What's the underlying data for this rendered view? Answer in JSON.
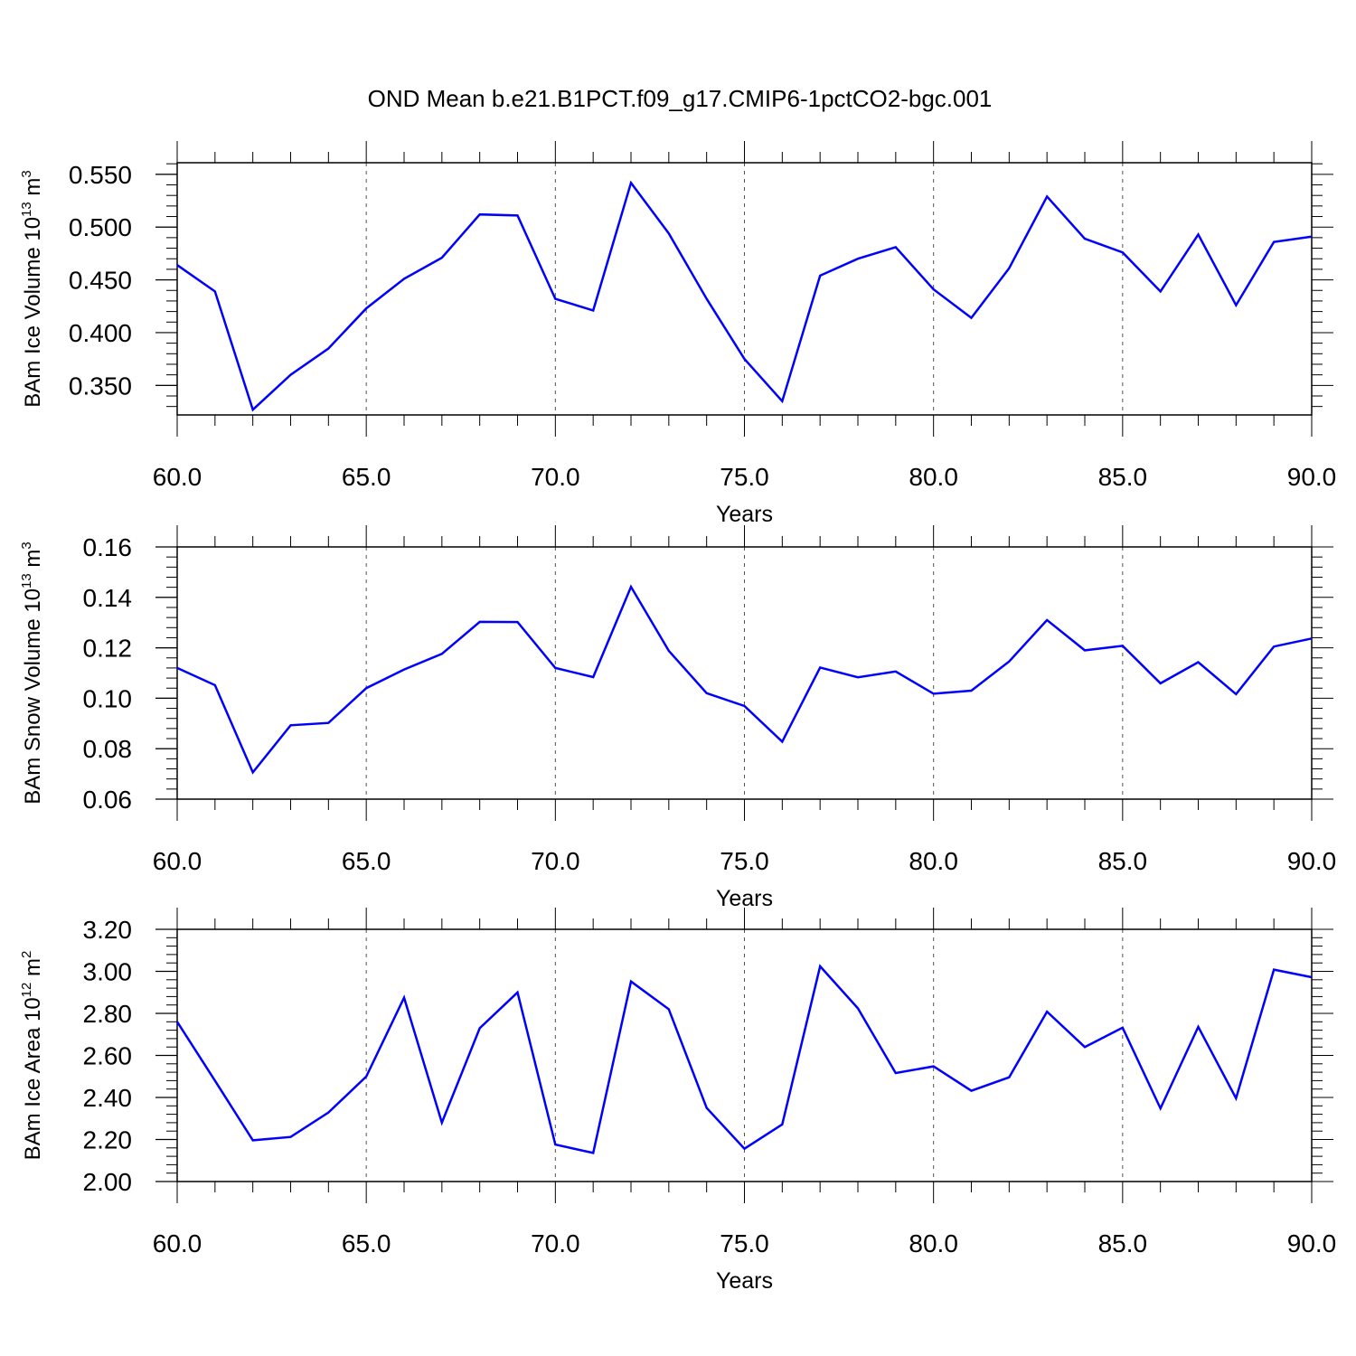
{
  "title": "OND Mean b.e21.B1PCT.f09_g17.CMIP6-1pctCO2-bgc.001",
  "colors": {
    "line": "#0000ff",
    "axes": "#000000",
    "grid": "#555555"
  },
  "chart_data": [
    {
      "type": "line",
      "ylabel": "BAm Ice Volume 10",
      "ylabel_sup": "13",
      "ylabel_unit": " m",
      "ylabel_unit_sup": "3",
      "xlabel": "Years",
      "xlim": [
        60,
        90
      ],
      "ylim": [
        0.322,
        0.561
      ],
      "xticks": [
        "60.0",
        "65.0",
        "70.0",
        "75.0",
        "80.0",
        "85.0",
        "90.0"
      ],
      "yticks": [
        "0.350",
        "0.400",
        "0.450",
        "0.500",
        "0.550"
      ],
      "grid": "vertical dashed at major x ticks",
      "x": [
        60,
        61,
        62,
        63,
        64,
        65,
        66,
        67,
        68,
        69,
        70,
        71,
        72,
        73,
        74,
        75,
        76,
        77,
        78,
        79,
        80,
        81,
        82,
        83,
        84,
        85,
        86,
        87,
        88,
        89,
        90
      ],
      "series": [
        {
          "values": [
            0.464,
            0.439,
            0.327,
            0.36,
            0.385,
            0.423,
            0.451,
            0.471,
            0.512,
            0.511,
            0.432,
            0.421,
            0.542,
            0.494,
            0.432,
            0.375,
            0.335,
            0.454,
            0.47,
            0.481,
            0.441,
            0.414,
            0.461,
            0.529,
            0.489,
            0.476,
            0.439,
            0.493,
            0.426,
            0.486,
            0.491
          ]
        }
      ]
    },
    {
      "type": "line",
      "ylabel": "BAm Snow Volume 10",
      "ylabel_sup": "13",
      "ylabel_unit": " m",
      "ylabel_unit_sup": "3",
      "xlabel": "Years",
      "xlim": [
        60,
        90
      ],
      "ylim": [
        0.06,
        0.16
      ],
      "xticks": [
        "60.0",
        "65.0",
        "70.0",
        "75.0",
        "80.0",
        "85.0",
        "90.0"
      ],
      "yticks": [
        "0.06",
        "0.08",
        "0.10",
        "0.12",
        "0.14",
        "0.16"
      ],
      "grid": "vertical dashed at major x ticks",
      "x": [
        60,
        61,
        62,
        63,
        64,
        65,
        66,
        67,
        68,
        69,
        70,
        71,
        72,
        73,
        74,
        75,
        76,
        77,
        78,
        79,
        80,
        81,
        82,
        83,
        84,
        85,
        86,
        87,
        88,
        89,
        90
      ],
      "series": [
        {
          "values": [
            0.112,
            0.1052,
            0.0706,
            0.0893,
            0.0902,
            0.104,
            0.1114,
            0.1176,
            0.1303,
            0.1302,
            0.112,
            0.1084,
            0.1442,
            0.1188,
            0.102,
            0.0969,
            0.0828,
            0.1122,
            0.1083,
            0.1106,
            0.1018,
            0.103,
            0.1146,
            0.131,
            0.119,
            0.1208,
            0.1059,
            0.1143,
            0.1016,
            0.1205,
            0.1237
          ]
        }
      ]
    },
    {
      "type": "line",
      "ylabel": "BAm Ice Area 10",
      "ylabel_sup": "12",
      "ylabel_unit": " m",
      "ylabel_unit_sup": "2",
      "xlabel": "Years",
      "xlim": [
        60,
        90
      ],
      "ylim": [
        2.0,
        3.2
      ],
      "xticks": [
        "60.0",
        "65.0",
        "70.0",
        "75.0",
        "80.0",
        "85.0",
        "90.0"
      ],
      "yticks": [
        "2.00",
        "2.20",
        "2.40",
        "2.60",
        "2.80",
        "3.00",
        "3.20"
      ],
      "grid": "vertical dashed at major x ticks",
      "x": [
        60,
        61,
        62,
        63,
        64,
        65,
        66,
        67,
        68,
        69,
        70,
        71,
        72,
        73,
        74,
        75,
        76,
        77,
        78,
        79,
        80,
        81,
        82,
        83,
        84,
        85,
        86,
        87,
        88,
        89,
        90
      ],
      "series": [
        {
          "values": [
            2.76,
            2.48,
            2.196,
            2.212,
            2.328,
            2.5,
            2.875,
            2.28,
            2.73,
            2.9,
            2.176,
            2.136,
            2.952,
            2.82,
            2.35,
            2.156,
            2.272,
            3.024,
            2.824,
            2.516,
            2.548,
            2.432,
            2.496,
            2.808,
            2.64,
            2.732,
            2.348,
            2.736,
            2.396,
            3.008,
            2.972
          ]
        }
      ]
    }
  ]
}
